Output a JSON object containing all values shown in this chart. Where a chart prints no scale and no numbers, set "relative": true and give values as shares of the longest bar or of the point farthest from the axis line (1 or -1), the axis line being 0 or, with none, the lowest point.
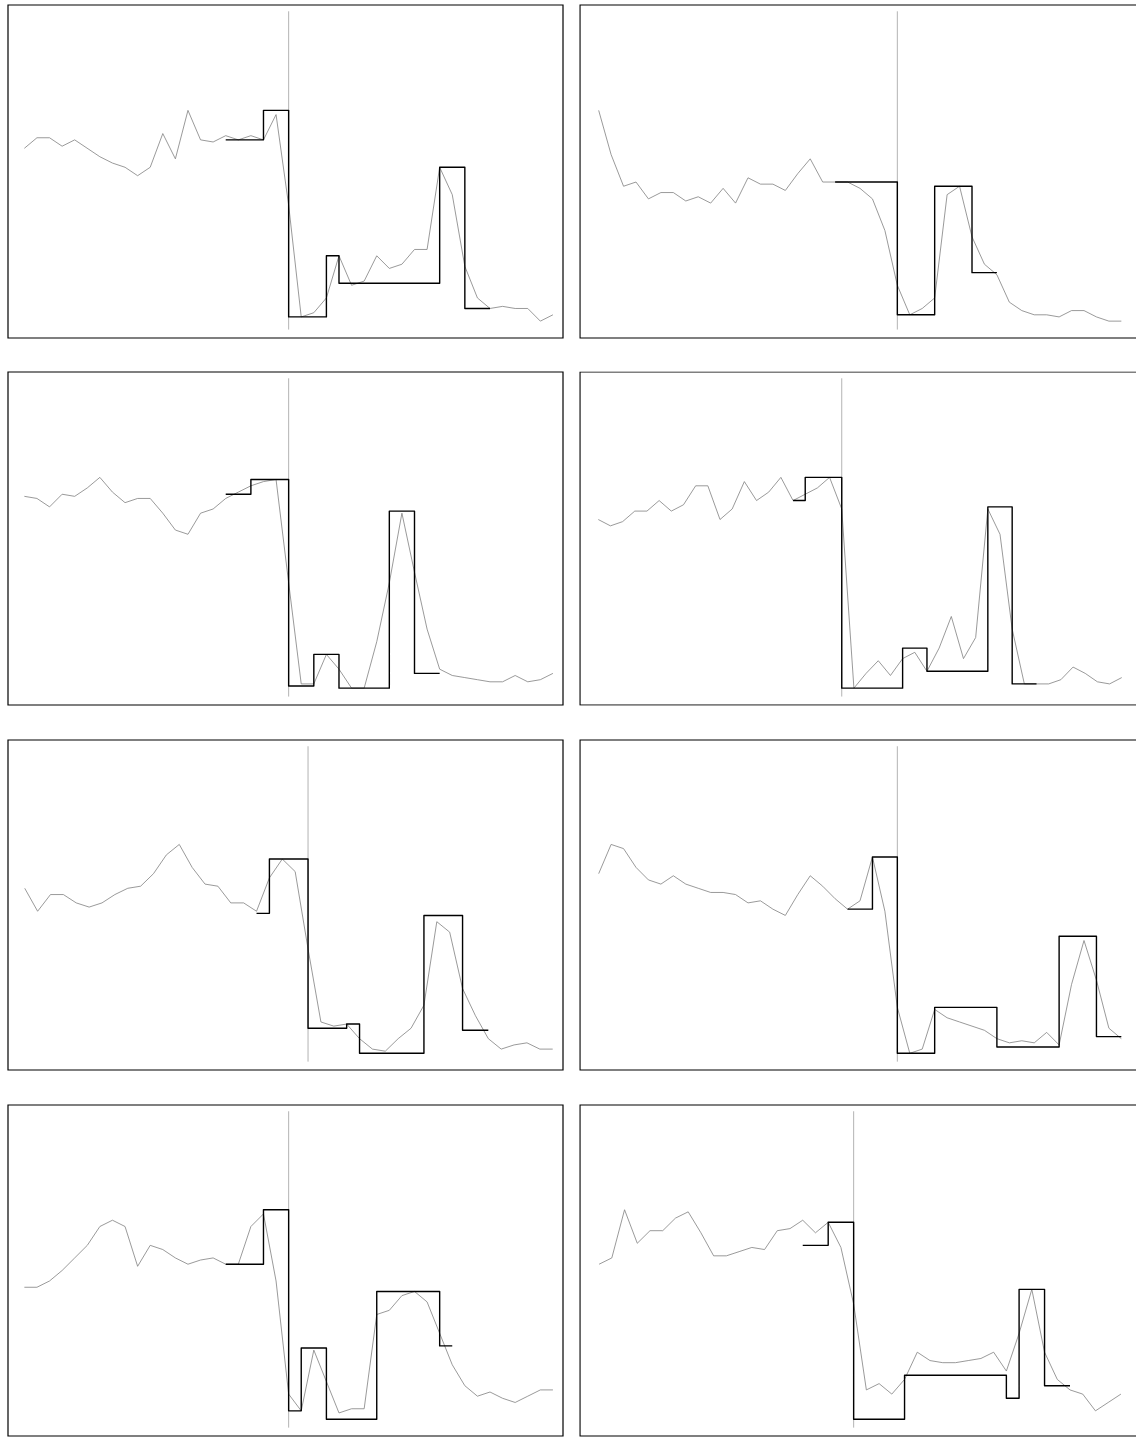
{
  "chart_data": [
    {
      "type": "line",
      "relative": true,
      "categories": [
        null,
        null,
        null,
        null,
        null,
        null,
        null,
        null,
        null,
        null,
        null,
        null,
        null,
        null,
        null,
        null,
        null,
        null,
        null,
        null,
        null,
        null,
        null,
        null,
        null,
        null,
        null,
        null,
        null,
        null,
        null,
        null,
        null,
        null,
        null,
        null,
        null,
        null,
        null,
        null,
        null,
        null,
        null
      ],
      "series": [
        {
          "color": "#808080",
          "values": [
            0.82,
            0.87,
            0.87,
            0.83,
            0.86,
            0.82,
            0.78,
            0.75,
            0.73,
            0.69,
            0.73,
            0.89,
            0.77,
            1.0,
            0.86,
            0.85,
            0.88,
            0.86,
            0.88,
            0.86,
            0.98,
            0.55,
            0.02,
            0.04,
            0.11,
            0.31,
            0.17,
            0.19,
            0.31,
            0.25,
            0.27,
            0.34,
            0.34,
            0.73,
            0.6,
            0.26,
            0.11,
            0.06,
            0.07,
            0.06,
            0.06,
            0,
            0.03
          ]
        },
        {
          "type": "step",
          "color": "#000000",
          "values": [
            null,
            null,
            null,
            null,
            null,
            null,
            null,
            null,
            null,
            null,
            null,
            null,
            null,
            null,
            null,
            null,
            0.86,
            0.86,
            0.86,
            1.0,
            1.0,
            0.02,
            0.02,
            0.02,
            0.31,
            0.18,
            0.18,
            0.18,
            0.18,
            0.18,
            0.18,
            0.18,
            0.18,
            0.73,
            0.73,
            0.06,
            0.06,
            0.06,
            null,
            null,
            null,
            null,
            null
          ]
        }
      ]
    },
    {
      "type": "line",
      "relative": true,
      "categories": [
        null,
        null,
        null,
        null,
        null,
        null,
        null,
        null,
        null,
        null,
        null,
        null,
        null,
        null,
        null,
        null,
        null,
        null,
        null,
        null,
        null,
        null,
        null,
        null,
        null,
        null,
        null,
        null,
        null,
        null,
        null,
        null,
        null,
        null,
        null,
        null,
        null,
        null,
        null,
        null,
        null,
        null,
        null
      ],
      "series": [
        {
          "color": "#808080",
          "values": [
            1.0,
            0.79,
            0.64,
            0.66,
            0.58,
            0.61,
            0.61,
            0.57,
            0.59,
            0.56,
            0.63,
            0.56,
            0.68,
            0.65,
            0.65,
            0.62,
            0.7,
            0.77,
            0.66,
            0.66,
            0.66,
            0.63,
            0.58,
            0.43,
            0.17,
            0.03,
            0.06,
            0.11,
            0.6,
            0.64,
            0.4,
            0.27,
            0.22,
            0.09,
            0.05,
            0.03,
            0.03,
            0.02,
            0.05,
            0.05,
            0.02,
            0,
            0
          ]
        },
        {
          "type": "step",
          "color": "#000000",
          "values": [
            null,
            null,
            null,
            null,
            null,
            null,
            null,
            null,
            null,
            null,
            null,
            null,
            null,
            null,
            null,
            null,
            null,
            null,
            null,
            0.66,
            0.66,
            0.66,
            0.66,
            0.66,
            0.03,
            0.03,
            0.03,
            0.64,
            0.64,
            0.64,
            0.23,
            0.23,
            0.23,
            null,
            null,
            null,
            null,
            null,
            null,
            null,
            null,
            null,
            null
          ]
        }
      ]
    },
    {
      "type": "line",
      "relative": true,
      "categories": [
        null,
        null,
        null,
        null,
        null,
        null,
        null,
        null,
        null,
        null,
        null,
        null,
        null,
        null,
        null,
        null,
        null,
        null,
        null,
        null,
        null,
        null,
        null,
        null,
        null,
        null,
        null,
        null,
        null,
        null,
        null,
        null,
        null,
        null,
        null,
        null,
        null,
        null,
        null,
        null,
        null,
        null,
        null
      ],
      "series": [
        {
          "color": "#808080",
          "values": [
            0.91,
            0.9,
            0.86,
            0.92,
            0.91,
            0.95,
            1.0,
            0.93,
            0.88,
            0.9,
            0.9,
            0.83,
            0.75,
            0.73,
            0.83,
            0.85,
            0.9,
            0.93,
            0.96,
            0.98,
            0.99,
            0.5,
            0.02,
            0.02,
            0.16,
            0.09,
            0,
            0,
            0.22,
            0.5,
            0.83,
            0.55,
            0.28,
            0.09,
            0.06,
            0.05,
            0.04,
            0.03,
            0.03,
            0.06,
            0.03,
            0.04,
            0.07
          ]
        },
        {
          "type": "step",
          "color": "#000000",
          "values": [
            null,
            null,
            null,
            null,
            null,
            null,
            null,
            null,
            null,
            null,
            null,
            null,
            null,
            null,
            null,
            null,
            0.92,
            0.92,
            0.99,
            0.99,
            0.99,
            0.01,
            0.01,
            0.16,
            0.16,
            0,
            0,
            0,
            0,
            0.84,
            0.84,
            0.07,
            0.07,
            0.07,
            null,
            null,
            null,
            null,
            null,
            null,
            null,
            null,
            null
          ]
        }
      ]
    },
    {
      "type": "line",
      "relative": true,
      "categories": [
        null,
        null,
        null,
        null,
        null,
        null,
        null,
        null,
        null,
        null,
        null,
        null,
        null,
        null,
        null,
        null,
        null,
        null,
        null,
        null,
        null,
        null,
        null,
        null,
        null,
        null,
        null,
        null,
        null,
        null,
        null,
        null,
        null,
        null,
        null,
        null,
        null,
        null,
        null,
        null,
        null,
        null,
        null,
        null
      ],
      "series": [
        {
          "color": "#808080",
          "values": [
            0.8,
            0.77,
            0.79,
            0.84,
            0.84,
            0.89,
            0.84,
            0.87,
            0.96,
            0.96,
            0.8,
            0.85,
            0.98,
            0.89,
            0.93,
            1.0,
            0.89,
            0.92,
            0.95,
            1.0,
            0.85,
            0,
            0.07,
            0.13,
            0.06,
            0.14,
            0.17,
            0.08,
            0.19,
            0.34,
            0.14,
            0.24,
            0.85,
            0.73,
            0.28,
            0.02,
            0.02,
            0.02,
            0.04,
            0.1,
            0.07,
            0.03,
            0.02,
            0.05
          ]
        },
        {
          "type": "step",
          "color": "#000000",
          "values": [
            null,
            null,
            null,
            null,
            null,
            null,
            null,
            null,
            null,
            null,
            null,
            null,
            null,
            null,
            null,
            null,
            0.89,
            1.0,
            1.0,
            1.0,
            0,
            0,
            0,
            0,
            0,
            0.19,
            0.19,
            0.08,
            0.08,
            0.08,
            0.08,
            0.08,
            0.86,
            0.86,
            0.02,
            0.02,
            0.02,
            null,
            null,
            null,
            null,
            null,
            null,
            null
          ]
        }
      ]
    },
    {
      "type": "line",
      "relative": true,
      "categories": [
        null,
        null,
        null,
        null,
        null,
        null,
        null,
        null,
        null,
        null,
        null,
        null,
        null,
        null,
        null,
        null,
        null,
        null,
        null,
        null,
        null,
        null,
        null,
        null,
        null,
        null,
        null,
        null,
        null,
        null,
        null,
        null,
        null,
        null,
        null,
        null,
        null,
        null,
        null,
        null,
        null,
        null
      ],
      "series": [
        {
          "color": "#808080",
          "values": [
            0.79,
            0.68,
            0.76,
            0.76,
            0.72,
            0.7,
            0.72,
            0.76,
            0.79,
            0.8,
            0.86,
            0.95,
            1.0,
            0.89,
            0.81,
            0.8,
            0.72,
            0.72,
            0.68,
            0.84,
            0.93,
            0.87,
            0.5,
            0.15,
            0.13,
            0.14,
            0.07,
            0.02,
            0.01,
            0.07,
            0.12,
            0.23,
            0.63,
            0.58,
            0.31,
            0.18,
            0.07,
            0.02,
            0.04,
            0.05,
            0.02,
            0.02
          ]
        },
        {
          "type": "step",
          "color": "#000000",
          "values": [
            null,
            null,
            null,
            null,
            null,
            null,
            null,
            null,
            null,
            null,
            null,
            null,
            null,
            null,
            null,
            null,
            null,
            null,
            0.67,
            0.93,
            0.93,
            0.93,
            0.12,
            0.12,
            0.12,
            0.14,
            0,
            0,
            0,
            0,
            0,
            0.66,
            0.66,
            0.66,
            0.11,
            0.11,
            0.11,
            null,
            null,
            null,
            null,
            null
          ]
        }
      ]
    },
    {
      "type": "line",
      "relative": true,
      "categories": [
        null,
        null,
        null,
        null,
        null,
        null,
        null,
        null,
        null,
        null,
        null,
        null,
        null,
        null,
        null,
        null,
        null,
        null,
        null,
        null,
        null,
        null,
        null,
        null,
        null,
        null,
        null,
        null,
        null,
        null,
        null,
        null,
        null,
        null,
        null,
        null,
        null,
        null,
        null,
        null,
        null,
        null,
        null
      ],
      "series": [
        {
          "color": "#808080",
          "values": [
            0.86,
            1.0,
            0.98,
            0.89,
            0.83,
            0.81,
            0.85,
            0.81,
            0.79,
            0.77,
            0.77,
            0.76,
            0.72,
            0.73,
            0.69,
            0.66,
            0.76,
            0.85,
            0.8,
            0.74,
            0.69,
            0.73,
            0.94,
            0.68,
            0.22,
            0,
            0.02,
            0.21,
            0.17,
            0.15,
            0.13,
            0.11,
            0.07,
            0.05,
            0.06,
            0.05,
            0.1,
            0.04,
            0.33,
            0.54,
            0.35,
            0.12,
            0.07
          ]
        },
        {
          "type": "step",
          "color": "#000000",
          "values": [
            null,
            null,
            null,
            null,
            null,
            null,
            null,
            null,
            null,
            null,
            null,
            null,
            null,
            null,
            null,
            null,
            null,
            null,
            null,
            null,
            0.69,
            0.69,
            0.94,
            0.94,
            0,
            0,
            0,
            0.22,
            0.22,
            0.22,
            0.22,
            0.22,
            0.03,
            0.03,
            0.03,
            0.03,
            0.03,
            0.56,
            0.56,
            0.56,
            0.08,
            0.08,
            0.08
          ]
        }
      ]
    },
    {
      "type": "line",
      "relative": true,
      "categories": [
        null,
        null,
        null,
        null,
        null,
        null,
        null,
        null,
        null,
        null,
        null,
        null,
        null,
        null,
        null,
        null,
        null,
        null,
        null,
        null,
        null,
        null,
        null,
        null,
        null,
        null,
        null,
        null,
        null,
        null,
        null,
        null,
        null,
        null,
        null,
        null,
        null,
        null,
        null,
        null,
        null,
        null,
        null
      ],
      "series": [
        {
          "color": "#808080",
          "values": [
            0.63,
            0.63,
            0.66,
            0.71,
            0.77,
            0.83,
            0.92,
            0.95,
            0.92,
            0.73,
            0.83,
            0.81,
            0.77,
            0.74,
            0.76,
            0.77,
            0.74,
            0.74,
            0.92,
            0.98,
            0.66,
            0.12,
            0.04,
            0.33,
            0.18,
            0.03,
            0.05,
            0.05,
            0.5,
            0.52,
            0.59,
            0.61,
            0.56,
            0.41,
            0.26,
            0.16,
            0.11,
            0.13,
            0.1,
            0.08,
            0.11,
            0.14,
            0.14
          ]
        },
        {
          "type": "step",
          "color": "#000000",
          "values": [
            null,
            null,
            null,
            null,
            null,
            null,
            null,
            null,
            null,
            null,
            null,
            null,
            null,
            null,
            null,
            null,
            0.74,
            0.74,
            0.74,
            1.0,
            1.0,
            0.04,
            0.34,
            0.34,
            0,
            0,
            0,
            0,
            0.61,
            0.61,
            0.61,
            0.61,
            0.61,
            0.35,
            0.35,
            null,
            null,
            null,
            null,
            null,
            null,
            null,
            null
          ]
        }
      ]
    },
    {
      "type": "line",
      "relative": true,
      "categories": [
        null,
        null,
        null,
        null,
        null,
        null,
        null,
        null,
        null,
        null,
        null,
        null,
        null,
        null,
        null,
        null,
        null,
        null,
        null,
        null,
        null,
        null,
        null,
        null,
        null,
        null,
        null,
        null,
        null,
        null,
        null,
        null,
        null,
        null,
        null,
        null,
        null,
        null,
        null,
        null,
        null,
        null
      ],
      "series": [
        {
          "color": "#808080",
          "values": [
            0.74,
            0.77,
            1.0,
            0.84,
            0.9,
            0.9,
            0.96,
            0.99,
            0.89,
            0.78,
            0.78,
            0.8,
            0.82,
            0.81,
            0.9,
            0.91,
            0.95,
            0.89,
            0.94,
            0.82,
            0.55,
            0.14,
            0.17,
            0.12,
            0.19,
            0.32,
            0.28,
            0.27,
            0.27,
            0.28,
            0.29,
            0.32,
            0.23,
            0.41,
            0.62,
            0.32,
            0.19,
            0.14,
            0.12,
            0.04,
            0.08,
            0.12
          ]
        },
        {
          "type": "step",
          "color": "#000000",
          "values": [
            null,
            null,
            null,
            null,
            null,
            null,
            null,
            null,
            null,
            null,
            null,
            null,
            null,
            null,
            null,
            null,
            0.83,
            0.83,
            0.94,
            0.94,
            0,
            0,
            0,
            0,
            0.21,
            0.21,
            0.21,
            0.21,
            0.21,
            0.21,
            0.21,
            0.21,
            0.1,
            0.62,
            0.62,
            0.16,
            0.16,
            0.16,
            null,
            null,
            null,
            null
          ]
        }
      ]
    }
  ]
}
